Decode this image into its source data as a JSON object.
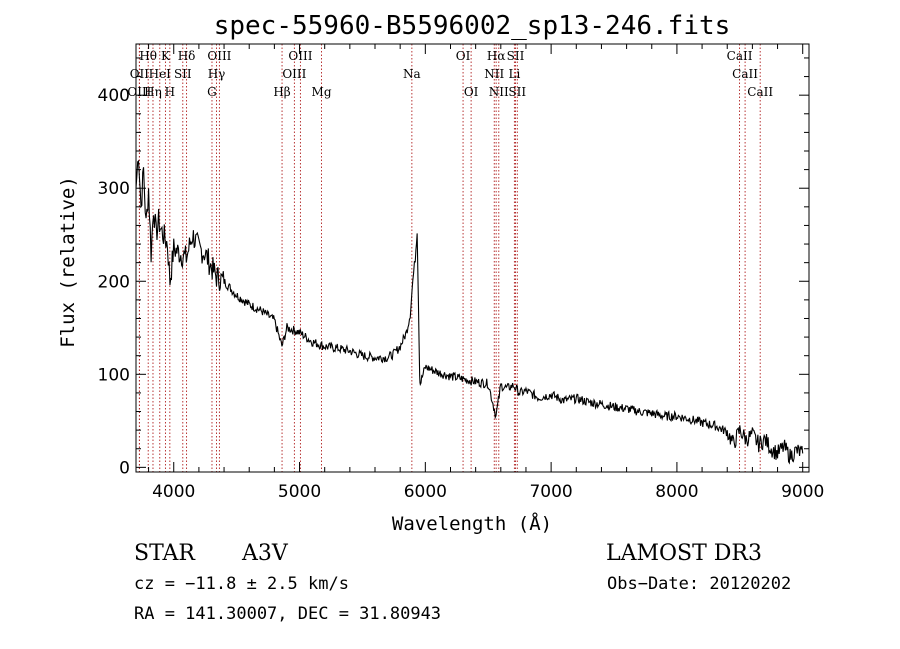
{
  "chart_data": {
    "type": "line",
    "title": "spec-55960-B5596002_sp13-246.fits",
    "xlabel": "Wavelength (Å)",
    "ylabel": "Flux (relative)",
    "xlim": [
      3700,
      9050
    ],
    "ylim": [
      -5,
      455
    ],
    "x_ticks": [
      4000,
      5000,
      6000,
      7000,
      8000,
      9000
    ],
    "y_ticks": [
      0,
      100,
      200,
      300,
      400
    ],
    "grid": false,
    "series": [
      {
        "name": "spectrum",
        "x": [
          3700,
          3720,
          3740,
          3760,
          3780,
          3800,
          3820,
          3840,
          3860,
          3880,
          3900,
          3950,
          3970,
          4000,
          4050,
          4100,
          4150,
          4200,
          4250,
          4300,
          4340,
          4400,
          4500,
          4600,
          4700,
          4800,
          4860,
          4900,
          5000,
          5100,
          5200,
          5300,
          5400,
          5500,
          5600,
          5700,
          5750,
          5800,
          5850,
          5880,
          5900,
          5920,
          5935,
          5945,
          5955,
          5960,
          6000,
          6100,
          6200,
          6300,
          6400,
          6500,
          6562,
          6600,
          6650,
          6700,
          6750,
          6800,
          6900,
          7000,
          7100,
          7200,
          7300,
          7400,
          7500,
          7600,
          7700,
          7800,
          7900,
          8000,
          8100,
          8200,
          8300,
          8400,
          8450,
          8500,
          8550,
          8600,
          8650,
          8700,
          8750,
          8800,
          8850,
          8900,
          8950,
          9000
        ],
        "values": [
          300,
          340,
          280,
          320,
          260,
          300,
          230,
          280,
          250,
          265,
          255,
          240,
          200,
          235,
          230,
          225,
          250,
          235,
          230,
          215,
          205,
          200,
          185,
          175,
          168,
          158,
          130,
          150,
          145,
          135,
          130,
          128,
          125,
          120,
          118,
          118,
          122,
          130,
          145,
          165,
          200,
          225,
          255,
          180,
          100,
          90,
          108,
          102,
          98,
          95,
          92,
          90,
          55,
          88,
          85,
          88,
          80,
          82,
          75,
          78,
          72,
          74,
          70,
          68,
          65,
          63,
          60,
          58,
          55,
          55,
          52,
          48,
          45,
          38,
          25,
          40,
          30,
          35,
          25,
          30,
          20,
          15,
          22,
          12,
          18,
          15
        ]
      }
    ],
    "spectral_lines": [
      {
        "label": "Hθ",
        "wavelength": 3797,
        "row": 1
      },
      {
        "label": "OII",
        "wavelength": 3727,
        "row": 2
      },
      {
        "label": "OIII",
        "wavelength": 3727,
        "row": 3
      },
      {
        "label": "Hη",
        "wavelength": 3835,
        "row": 3
      },
      {
        "label": "HeI",
        "wavelength": 3889,
        "row": 2
      },
      {
        "label": "K",
        "wavelength": 3934,
        "row": 1
      },
      {
        "label": "H",
        "wavelength": 3969,
        "row": 3
      },
      {
        "label": "SII",
        "wavelength": 4072,
        "row": 2
      },
      {
        "label": "Hδ",
        "wavelength": 4102,
        "row": 1
      },
      {
        "label": "Hγ",
        "wavelength": 4340,
        "row": 2
      },
      {
        "label": "OIII",
        "wavelength": 4363,
        "row": 1
      },
      {
        "label": "G",
        "wavelength": 4304,
        "row": 3
      },
      {
        "label": "Hβ",
        "wavelength": 4861,
        "row": 3
      },
      {
        "label": "OIII",
        "wavelength": 5007,
        "row": 1
      },
      {
        "label": "OIII",
        "wavelength": 4959,
        "row": 2
      },
      {
        "label": "Mg",
        "wavelength": 5175,
        "row": 3
      },
      {
        "label": "Na",
        "wavelength": 5893,
        "row": 2
      },
      {
        "label": "OI",
        "wavelength": 6300,
        "row": 1
      },
      {
        "label": "OI",
        "wavelength": 6364,
        "row": 3
      },
      {
        "label": "Hα",
        "wavelength": 6563,
        "row": 1
      },
      {
        "label": "NII",
        "wavelength": 6548,
        "row": 2
      },
      {
        "label": "NII",
        "wavelength": 6584,
        "row": 3
      },
      {
        "label": "SII",
        "wavelength": 6717,
        "row": 1
      },
      {
        "label": "Li",
        "wavelength": 6708,
        "row": 2
      },
      {
        "label": "SII",
        "wavelength": 6731,
        "row": 3
      },
      {
        "label": "CaII",
        "wavelength": 8498,
        "row": 1
      },
      {
        "label": "CaII",
        "wavelength": 8542,
        "row": 2
      },
      {
        "label": "CaII",
        "wavelength": 8662,
        "row": 3
      }
    ]
  },
  "info": {
    "object_class": "STAR",
    "subclass": "A3V",
    "survey": "LAMOST DR3",
    "cz_text": "cz = −11.8 ± 2.5 km/s",
    "obs_date_text": "Obs−Date: 20120202",
    "radec_text": "RA = 141.30007, DEC =  31.80943"
  },
  "colors": {
    "spectrum": "#000000",
    "line_markers": "#b02020",
    "axes": "#000000"
  }
}
